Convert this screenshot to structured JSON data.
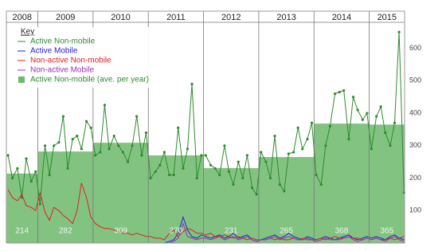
{
  "chart_data": {
    "type": "line",
    "xlim": [
      2008.43,
      2015.64
    ],
    "xticks": [
      2009,
      2010,
      2011,
      2012,
      2013,
      2014,
      2015
    ],
    "year_labels": [
      2008,
      2009,
      2010,
      2011,
      2012,
      2013,
      2014,
      2015
    ],
    "ylim": [
      0,
      680
    ],
    "yticks": [
      100,
      200,
      300,
      400,
      500,
      600
    ],
    "minor_grid_step": 20,
    "grid": true,
    "legend_title": "Key",
    "legend_position": "upper left",
    "x": [
      2008.46,
      2008.54,
      2008.63,
      2008.71,
      2008.79,
      2008.88,
      2008.96,
      2009.04,
      2009.13,
      2009.21,
      2009.29,
      2009.38,
      2009.46,
      2009.54,
      2009.63,
      2009.71,
      2009.79,
      2009.88,
      2009.96,
      2010.04,
      2010.13,
      2010.21,
      2010.29,
      2010.38,
      2010.46,
      2010.54,
      2010.63,
      2010.71,
      2010.79,
      2010.88,
      2010.96,
      2011.04,
      2011.13,
      2011.21,
      2011.29,
      2011.38,
      2011.46,
      2011.54,
      2011.63,
      2011.71,
      2011.79,
      2011.88,
      2011.96,
      2012.04,
      2012.13,
      2012.21,
      2012.29,
      2012.38,
      2012.46,
      2012.54,
      2012.63,
      2012.71,
      2012.79,
      2012.88,
      2012.96,
      2013.04,
      2013.13,
      2013.21,
      2013.29,
      2013.38,
      2013.46,
      2013.54,
      2013.63,
      2013.71,
      2013.79,
      2013.88,
      2013.96,
      2014.04,
      2014.13,
      2014.21,
      2014.29,
      2014.38,
      2014.46,
      2014.54,
      2014.63,
      2014.71,
      2014.79,
      2014.88,
      2014.96,
      2015.04,
      2015.13,
      2015.21,
      2015.29,
      2015.38,
      2015.46,
      2015.54,
      2015.63
    ],
    "series": [
      {
        "name": "Active Non-mobile",
        "color": "#2e8b2e",
        "markers": true,
        "values": [
          270,
          200,
          230,
          140,
          260,
          190,
          220,
          120,
          300,
          210,
          300,
          310,
          390,
          230,
          320,
          330,
          290,
          375,
          355,
          270,
          280,
          425,
          290,
          330,
          300,
          280,
          250,
          300,
          390,
          270,
          340,
          200,
          220,
          240,
          280,
          210,
          210,
          355,
          230,
          290,
          490,
          200,
          270,
          270,
          240,
          230,
          210,
          300,
          220,
          180,
          250,
          200,
          270,
          170,
          150,
          280,
          250,
          200,
          330,
          180,
          160,
          275,
          280,
          355,
          290,
          320,
          370,
          210,
          180,
          300,
          360,
          460,
          465,
          470,
          320,
          450,
          410,
          380,
          400,
          290,
          390,
          420,
          340,
          300,
          370,
          650,
          155
        ]
      },
      {
        "name": "Active Mobile",
        "color": "#2222dd",
        "markers": false,
        "values": [
          0,
          0,
          0,
          0,
          0,
          0,
          0,
          0,
          0,
          0,
          0,
          0,
          0,
          0,
          0,
          0,
          0,
          0,
          0,
          0,
          0,
          0,
          0,
          0,
          0,
          0,
          0,
          0,
          0,
          0,
          0,
          0,
          0,
          0,
          0,
          5,
          10,
          30,
          80,
          40,
          20,
          15,
          25,
          20,
          15,
          20,
          25,
          15,
          20,
          30,
          15,
          20,
          25,
          10,
          5,
          10,
          15,
          20,
          25,
          15,
          20,
          30,
          20,
          15,
          10,
          20,
          15,
          10,
          15,
          20,
          15,
          10,
          15,
          20,
          25,
          15,
          10,
          15,
          20,
          15,
          20,
          15,
          10,
          20,
          25,
          15,
          10
        ]
      },
      {
        "name": "Non-active Non-mobile",
        "color": "#dd2222",
        "markers": false,
        "values": [
          165,
          140,
          130,
          150,
          115,
          110,
          100,
          155,
          95,
          70,
          110,
          100,
          85,
          75,
          60,
          100,
          185,
          140,
          80,
          60,
          50,
          45,
          45,
          40,
          35,
          30,
          30,
          25,
          30,
          25,
          20,
          20,
          15,
          15,
          10,
          30,
          40,
          20,
          35,
          45,
          40,
          30,
          30,
          25,
          30,
          20,
          20,
          25,
          20,
          15,
          20,
          15,
          10,
          15,
          10,
          10,
          10,
          15,
          10,
          15,
          10,
          10,
          15,
          10,
          15,
          10,
          10,
          10,
          15,
          10,
          15,
          20,
          15,
          15,
          20,
          15,
          15,
          10,
          15,
          10,
          15,
          10,
          10,
          15,
          10,
          15,
          20
        ]
      },
      {
        "name": "Non-active Mobile",
        "color": "#9b30b0",
        "markers": false,
        "values": [
          0,
          0,
          0,
          0,
          0,
          0,
          0,
          0,
          0,
          0,
          0,
          0,
          0,
          0,
          0,
          0,
          0,
          0,
          0,
          0,
          0,
          0,
          0,
          0,
          0,
          0,
          0,
          0,
          0,
          0,
          0,
          0,
          0,
          0,
          0,
          0,
          5,
          15,
          60,
          20,
          15,
          10,
          15,
          15,
          10,
          15,
          20,
          10,
          15,
          20,
          10,
          15,
          20,
          10,
          5,
          10,
          10,
          15,
          20,
          10,
          15,
          20,
          15,
          10,
          10,
          15,
          10,
          5,
          10,
          15,
          10,
          10,
          10,
          15,
          20,
          10,
          5,
          10,
          15,
          10,
          15,
          10,
          5,
          15,
          20,
          10,
          5
        ]
      }
    ],
    "annual_average": {
      "name": "Active Non-mobile (ave. per year)",
      "color": "#6cb86c",
      "values": [
        214,
        282,
        309,
        270,
        231,
        265,
        368,
        365
      ]
    }
  }
}
